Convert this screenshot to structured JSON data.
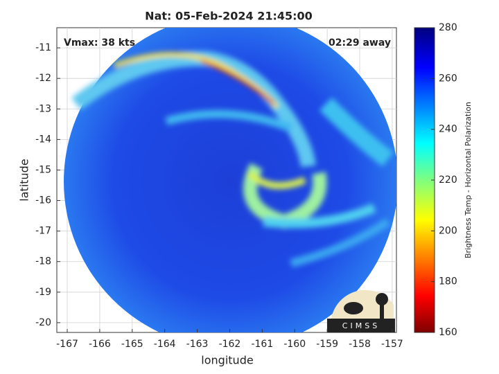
{
  "chart_data": {
    "type": "map",
    "title": "Nat: 05-Feb-2024 21:45:00",
    "annotations": {
      "left": "Vmax: 38 kts",
      "right": "02:29 away"
    },
    "xlabel": "longitude",
    "ylabel": "latitude",
    "xlim": [
      -167.32,
      -156.87
    ],
    "ylim": [
      -20.32,
      -10.34
    ],
    "xticks": [
      -167,
      -166,
      -165,
      -164,
      -163,
      -162,
      -161,
      -160,
      -159,
      -158,
      -157
    ],
    "yticks": [
      -11,
      -12,
      -13,
      -14,
      -15,
      -16,
      -17,
      -18,
      -19,
      -20
    ],
    "grid": true,
    "colorbar": {
      "label": "Brightness Temp - Horizontal Polarization",
      "lim": [
        160,
        280
      ],
      "ticks": [
        160,
        180,
        200,
        220,
        240,
        260,
        280
      ]
    },
    "logo_text": "CIMSS"
  }
}
